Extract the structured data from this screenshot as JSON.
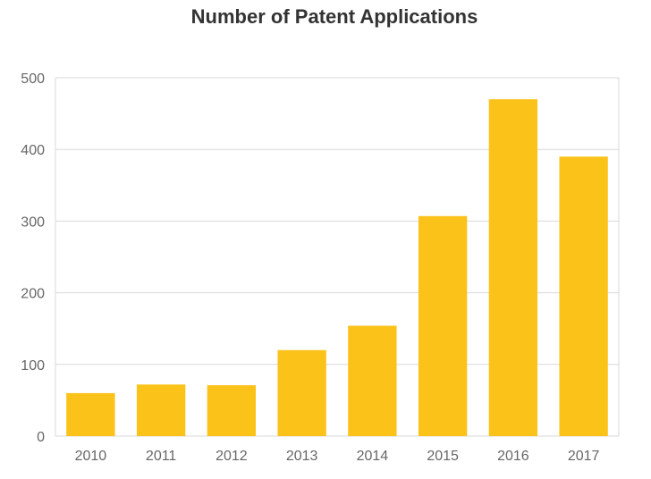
{
  "chart_data": {
    "type": "bar",
    "title": "Number of Patent Applications",
    "xlabel": "",
    "ylabel": "",
    "categories": [
      "2010",
      "2011",
      "2012",
      "2013",
      "2014",
      "2015",
      "2016",
      "2017"
    ],
    "values": [
      60,
      72,
      71,
      120,
      154,
      307,
      470,
      390
    ],
    "ylim": [
      0,
      500
    ],
    "yticks": [
      "0",
      "100",
      "200",
      "300",
      "400",
      "500"
    ],
    "grid": true,
    "legend": "none",
    "bar_color": "#FBC21A",
    "grid_color": "#D9D9D9",
    "tick_color": "#666666",
    "title_color": "#333333"
  }
}
